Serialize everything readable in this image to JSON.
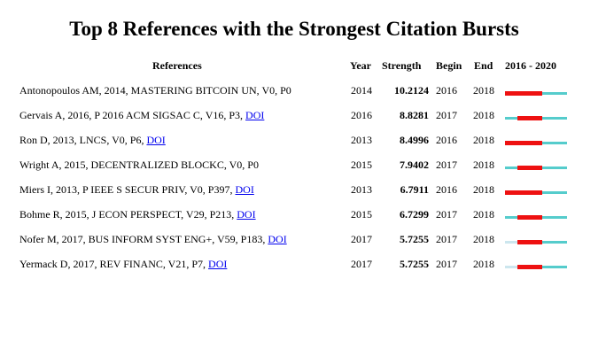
{
  "title": "Top 8 References with the Strongest Citation Bursts",
  "headers": {
    "references": "References",
    "year": "Year",
    "strength": "Strength",
    "begin": "Begin",
    "end": "End",
    "range": "2016 - 2020"
  },
  "timeline": {
    "start_year": 2016,
    "end_year": 2020,
    "colors": {
      "burst": "#ee1111",
      "active": "#55cccc",
      "before_publication": "#cce6ee"
    }
  },
  "rows": [
    {
      "ref": "Antonopoulos AM, 2014, MASTERING BITCOIN UN, V0, P0",
      "doi": "",
      "year": "2014",
      "strength": "10.2124",
      "begin": "2016",
      "end": "2018"
    },
    {
      "ref": "Gervais A, 2016, P 2016 ACM SIGSAC C, V16, P3, ",
      "doi": "DOI",
      "year": "2016",
      "strength": "8.8281",
      "begin": "2017",
      "end": "2018"
    },
    {
      "ref": "Ron D, 2013, LNCS, V0, P6, ",
      "doi": "DOI",
      "year": "2013",
      "strength": "8.4996",
      "begin": "2016",
      "end": "2018"
    },
    {
      "ref": "Wright A, 2015, DECENTRALIZED BLOCKC, V0, P0",
      "doi": "",
      "year": "2015",
      "strength": "7.9402",
      "begin": "2017",
      "end": "2018"
    },
    {
      "ref": "Miers I, 2013, P IEEE S SECUR PRIV, V0, P397, ",
      "doi": "DOI",
      "year": "2013",
      "strength": "6.7911",
      "begin": "2016",
      "end": "2018"
    },
    {
      "ref": "Bohme R, 2015, J ECON PERSPECT, V29, P213, ",
      "doi": "DOI",
      "year": "2015",
      "strength": "6.7299",
      "begin": "2017",
      "end": "2018"
    },
    {
      "ref": "Nofer M, 2017, BUS INFORM SYST ENG+, V59, P183, ",
      "doi": "DOI",
      "year": "2017",
      "strength": "5.7255",
      "begin": "2017",
      "end": "2018"
    },
    {
      "ref": "Yermack D, 2017, REV FINANC, V21, P7, ",
      "doi": "DOI",
      "year": "2017",
      "strength": "5.7255",
      "begin": "2017",
      "end": "2018"
    }
  ]
}
